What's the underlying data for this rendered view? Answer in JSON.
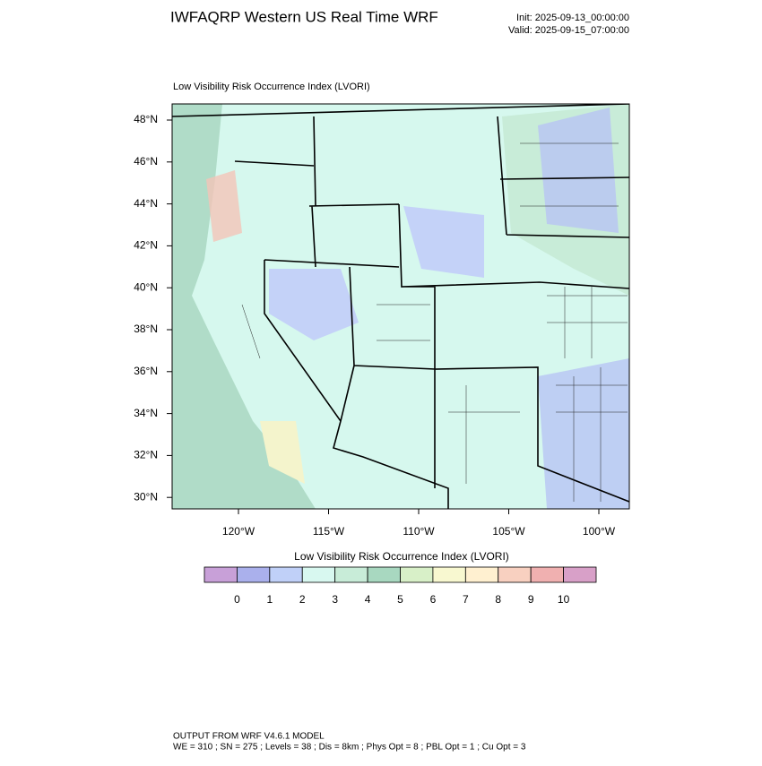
{
  "header": {
    "title": "IWFAQRP Western US Real Time WRF",
    "init": "Init: 2025-09-13_00:00:00",
    "valid": "Valid: 2025-09-15_07:00:00"
  },
  "map": {
    "title": "Low Visibility Risk Occurrence Index   (LVORI)",
    "lat_labels": [
      "48°N",
      "46°N",
      "44°N",
      "42°N",
      "40°N",
      "38°N",
      "36°N",
      "34°N",
      "32°N",
      "30°N"
    ],
    "lon_labels": [
      "120°W",
      "115°W",
      "110°W",
      "105°W",
      "100°W"
    ]
  },
  "colorbar": {
    "title": "Low Visibility Risk Occurrence Index  (LVORI)",
    "colors": [
      "#c8a0d8",
      "#aab0ec",
      "#c0d0f8",
      "#d8f8f0",
      "#c8ecd8",
      "#a8d8c0",
      "#d8f0c8",
      "#f8f8d0",
      "#fff0d0",
      "#f8d0c0",
      "#f0b0b0",
      "#d8a0c8"
    ],
    "labels": [
      "0",
      "1",
      "2",
      "3",
      "4",
      "5",
      "6",
      "7",
      "8",
      "9",
      "10"
    ]
  },
  "footer": {
    "line1": "OUTPUT FROM WRF V4.6.1 MODEL",
    "line2": "WE = 310 ; SN = 275 ; Levels = 38 ; Dis = 8km ; Phys Opt = 8 ; PBL Opt = 1 ; Cu Opt = 3"
  }
}
